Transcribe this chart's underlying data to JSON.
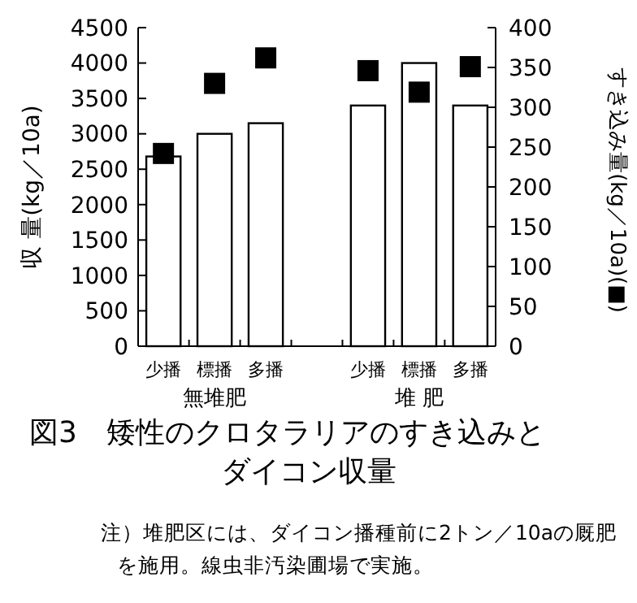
{
  "chart_data": {
    "type": "bar",
    "title": "図3　矮性のクロタラリアのすき込みとダイコン収量",
    "ylabel": "収 量(kg／10a)",
    "y2label": "すき込み量(kg／10a)(■)",
    "categories": [
      "少播",
      "標播",
      "多播",
      null,
      "少播",
      "標播",
      "多播"
    ],
    "series": [
      {
        "color": "#ffffff",
        "values": [
          2680,
          3000,
          3150,
          null,
          3400,
          4000,
          3400
        ]
      },
      {
        "type": "scatter",
        "axis": "y2",
        "color": "#000000",
        "values": [
          242,
          330,
          362,
          null,
          346,
          319,
          351
        ]
      }
    ],
    "ylim": [
      0,
      4500
    ],
    "yticks": [
      0,
      500,
      1000,
      1500,
      2000,
      2500,
      3000,
      3500,
      4000,
      4500
    ],
    "y2lim": [
      0,
      400
    ],
    "y2ticks": [
      0,
      50,
      100,
      150,
      200,
      250,
      300,
      350,
      400
    ],
    "marker": "square",
    "grid": false,
    "annotations": [
      "無堆肥",
      "堆 肥",
      "注）堆肥区には、ダイコン播種前に2トン／10aの厩肥を施用。線虫非汚染圃場で実施。"
    ]
  }
}
